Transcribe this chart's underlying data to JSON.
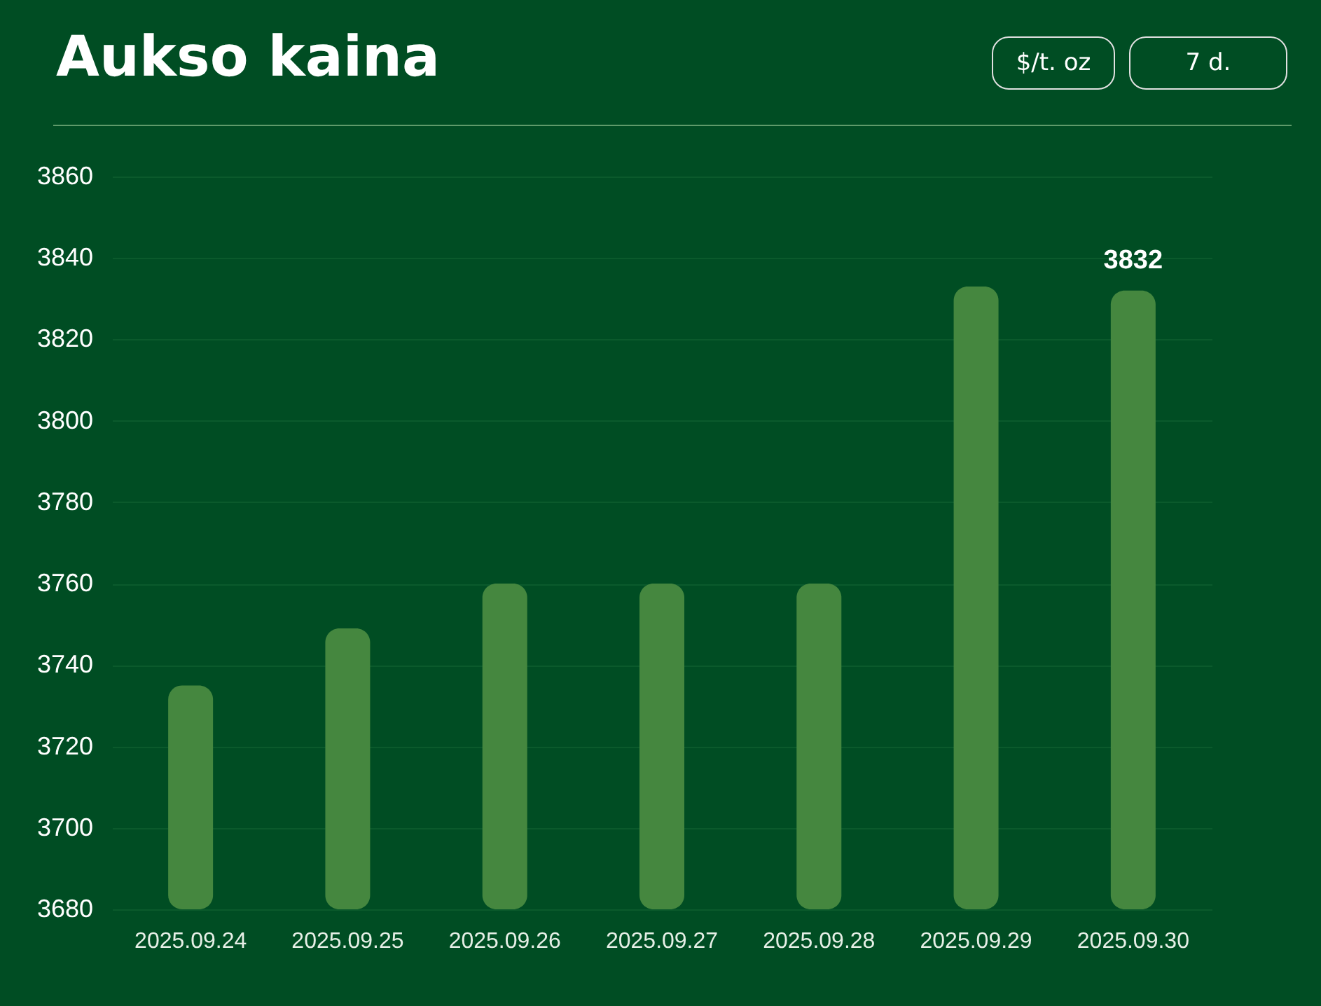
{
  "chart_data": {
    "type": "bar",
    "title": "Aukso kaina",
    "annotations": [
      "$/t. oz",
      "7 d."
    ],
    "categories": [
      "2025.09.24",
      "2025.09.25",
      "2025.09.26",
      "2025.09.27",
      "2025.09.28",
      "2025.09.29",
      "2025.09.30"
    ],
    "values": [
      3735,
      3749,
      3760,
      3760,
      3760,
      3833,
      3832
    ],
    "value_labels": [
      null,
      null,
      null,
      null,
      null,
      null,
      "3832"
    ],
    "color": "#45873f",
    "ylim": [
      3680,
      3860
    ],
    "yticks": [
      3680,
      3700,
      3720,
      3740,
      3760,
      3780,
      3800,
      3820,
      3840,
      3860
    ],
    "grid": "y"
  }
}
